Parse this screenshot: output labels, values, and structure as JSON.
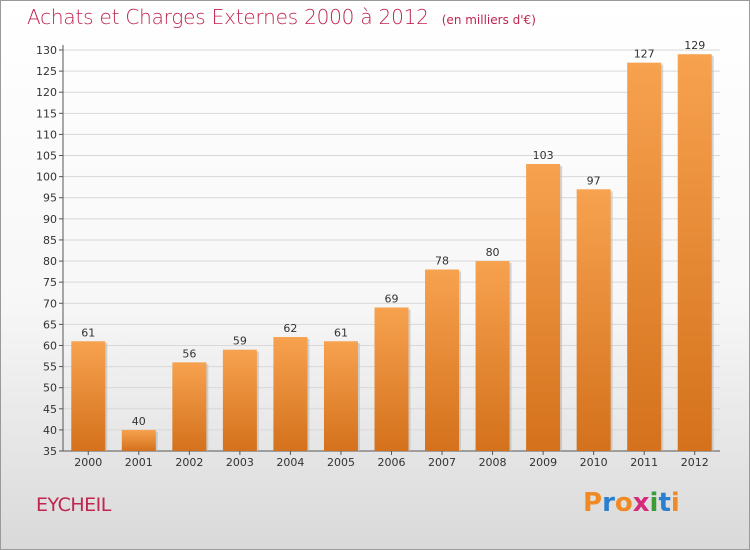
{
  "chart_data": {
    "type": "bar",
    "title": "Achats et Charges Externes 2000 à 2012",
    "subtitle": "(en milliers d'€)",
    "categories": [
      "2000",
      "2001",
      "2002",
      "2003",
      "2004",
      "2005",
      "2006",
      "2007",
      "2008",
      "2009",
      "2010",
      "2011",
      "2012"
    ],
    "values": [
      61,
      40,
      56,
      59,
      62,
      61,
      69,
      78,
      80,
      103,
      97,
      127,
      129
    ],
    "ylim": [
      35,
      130
    ],
    "yticks": [
      35,
      40,
      45,
      50,
      55,
      60,
      65,
      70,
      75,
      80,
      85,
      90,
      95,
      100,
      105,
      110,
      115,
      120,
      125,
      130
    ],
    "grid": true,
    "bar_color_top": "#f7a24f",
    "bar_color_bottom": "#d4711c"
  },
  "footer": {
    "location": "EYCHEIL",
    "brand_letters": [
      "P",
      "r",
      "o",
      "x",
      "i",
      "t",
      "i"
    ],
    "brand_colors": [
      "#f08a24",
      "#2b7fd0",
      "#f08a24",
      "#d62a7c",
      "#3a9d3a",
      "#2b7fd0",
      "#f08a24"
    ]
  }
}
